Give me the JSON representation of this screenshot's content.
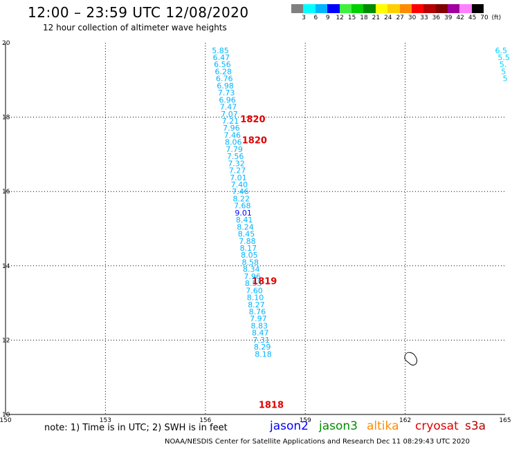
{
  "header": {
    "title": "12:00 – 23:59 UTC 12/08/2020",
    "subtitle": "12 hour collection of altimeter wave heights"
  },
  "colorbar": {
    "colors": [
      "#808080",
      "#00ffff",
      "#00b4ff",
      "#0000ff",
      "#40f040",
      "#00d000",
      "#008c00",
      "#ffff00",
      "#ffd000",
      "#ff8c00",
      "#ff0000",
      "#b40000",
      "#800000",
      "#a000a0",
      "#ff80ff",
      "#000000"
    ],
    "labels": [
      "3",
      "6",
      "9",
      "12",
      "15",
      "18",
      "21",
      "24",
      "27",
      "30",
      "33",
      "36",
      "39",
      "42",
      "45",
      "70",
      "(ft)"
    ]
  },
  "axes": {
    "x_ticks": [
      "150",
      "153",
      "156",
      "159",
      "162",
      "165"
    ],
    "y_ticks": [
      "10",
      "12",
      "14",
      "16",
      "18",
      "20"
    ],
    "xlim": [
      150,
      165
    ],
    "ylim": [
      10,
      20
    ]
  },
  "map_features": {
    "island_icon": "island-outline",
    "island_lon": 162.2,
    "island_lat": 11.5
  },
  "chart_data": {
    "type": "scatter",
    "swh_track": {
      "satellite": "jason2",
      "color": "#00b4ff",
      "highlight_color": "#0000ff",
      "points": [
        {
          "lon": 156.45,
          "lat": 19.8,
          "v": "5.85"
        },
        {
          "lon": 156.48,
          "lat": 19.61,
          "v": "6.47"
        },
        {
          "lon": 156.51,
          "lat": 19.42,
          "v": "6.56"
        },
        {
          "lon": 156.54,
          "lat": 19.23,
          "v": "6.28"
        },
        {
          "lon": 156.57,
          "lat": 19.04,
          "v": "6.76"
        },
        {
          "lon": 156.6,
          "lat": 18.85,
          "v": "6.98"
        },
        {
          "lon": 156.63,
          "lat": 18.66,
          "v": "7.73"
        },
        {
          "lon": 156.66,
          "lat": 18.47,
          "v": "6.96"
        },
        {
          "lon": 156.69,
          "lat": 18.28,
          "v": "7.47"
        },
        {
          "lon": 156.72,
          "lat": 18.09,
          "v": "7.07"
        },
        {
          "lon": 156.75,
          "lat": 17.9,
          "v": "7.21"
        },
        {
          "lon": 156.78,
          "lat": 17.71,
          "v": "7.96"
        },
        {
          "lon": 156.81,
          "lat": 17.52,
          "v": "7.46"
        },
        {
          "lon": 156.84,
          "lat": 17.33,
          "v": "8.06"
        },
        {
          "lon": 156.87,
          "lat": 17.14,
          "v": "7.79"
        },
        {
          "lon": 156.9,
          "lat": 16.95,
          "v": "7.56"
        },
        {
          "lon": 156.93,
          "lat": 16.76,
          "v": "7.32"
        },
        {
          "lon": 156.96,
          "lat": 16.57,
          "v": "7.27"
        },
        {
          "lon": 156.99,
          "lat": 16.38,
          "v": "7.01"
        },
        {
          "lon": 157.02,
          "lat": 16.19,
          "v": "7.40"
        },
        {
          "lon": 157.05,
          "lat": 16.0,
          "v": "7.46"
        },
        {
          "lon": 157.08,
          "lat": 15.81,
          "v": "8.22"
        },
        {
          "lon": 157.11,
          "lat": 15.62,
          "v": "7.68"
        },
        {
          "lon": 157.14,
          "lat": 15.43,
          "v": "9.01",
          "hl": true
        },
        {
          "lon": 157.17,
          "lat": 15.24,
          "v": "8.41"
        },
        {
          "lon": 157.2,
          "lat": 15.05,
          "v": "8.24"
        },
        {
          "lon": 157.23,
          "lat": 14.86,
          "v": "8.45"
        },
        {
          "lon": 157.26,
          "lat": 14.67,
          "v": "7.88"
        },
        {
          "lon": 157.29,
          "lat": 14.48,
          "v": "8.17"
        },
        {
          "lon": 157.32,
          "lat": 14.29,
          "v": "8.05"
        },
        {
          "lon": 157.35,
          "lat": 14.1,
          "v": "8.58"
        },
        {
          "lon": 157.38,
          "lat": 13.91,
          "v": "8.34"
        },
        {
          "lon": 157.41,
          "lat": 13.72,
          "v": "7.96"
        },
        {
          "lon": 157.44,
          "lat": 13.53,
          "v": "8.53"
        },
        {
          "lon": 157.47,
          "lat": 13.34,
          "v": "7.60"
        },
        {
          "lon": 157.5,
          "lat": 13.15,
          "v": "8.10"
        },
        {
          "lon": 157.53,
          "lat": 12.96,
          "v": "8.27"
        },
        {
          "lon": 157.56,
          "lat": 12.77,
          "v": "8.76"
        },
        {
          "lon": 157.59,
          "lat": 12.58,
          "v": "7.97"
        },
        {
          "lon": 157.62,
          "lat": 12.39,
          "v": "8.83"
        },
        {
          "lon": 157.65,
          "lat": 12.2,
          "v": "8.47"
        },
        {
          "lon": 157.68,
          "lat": 12.01,
          "v": "7.31"
        },
        {
          "lon": 157.71,
          "lat": 11.82,
          "v": "8.29"
        },
        {
          "lon": 157.74,
          "lat": 11.63,
          "v": "8.18"
        }
      ]
    },
    "edge_track": {
      "color": "#00d0ff",
      "points": [
        {
          "lon": 164.7,
          "lat": 19.8,
          "v": "6.5"
        },
        {
          "lon": 164.78,
          "lat": 19.61,
          "v": "5.5"
        },
        {
          "lon": 164.83,
          "lat": 19.42,
          "v": "5."
        },
        {
          "lon": 164.88,
          "lat": 19.23,
          "v": "5"
        },
        {
          "lon": 164.93,
          "lat": 19.04,
          "v": "5"
        }
      ]
    },
    "time_labels": {
      "color": "#e00000",
      "items": [
        {
          "lon": 157.05,
          "lat": 17.94,
          "v": "1820"
        },
        {
          "lon": 157.1,
          "lat": 17.37,
          "v": "1820"
        },
        {
          "lon": 157.4,
          "lat": 13.58,
          "v": "1819"
        },
        {
          "lon": 157.6,
          "lat": 10.25,
          "v": "1818"
        }
      ]
    }
  },
  "footer": {
    "note": "note: 1) Time is in UTC; 2) SWH is in feet",
    "credit": "NOAA/NESDIS Center for Satellite Applications and Research   Dec 11 08:29:43 UTC 2020",
    "legend": [
      {
        "name": "jason2",
        "color": "#0000ff"
      },
      {
        "name": "jason3",
        "color": "#008c00"
      },
      {
        "name": "altika",
        "color": "#ff8c00"
      },
      {
        "name": "cryosat",
        "color": "#e00000"
      },
      {
        "name": "s3a",
        "color": "#b40000"
      }
    ]
  }
}
